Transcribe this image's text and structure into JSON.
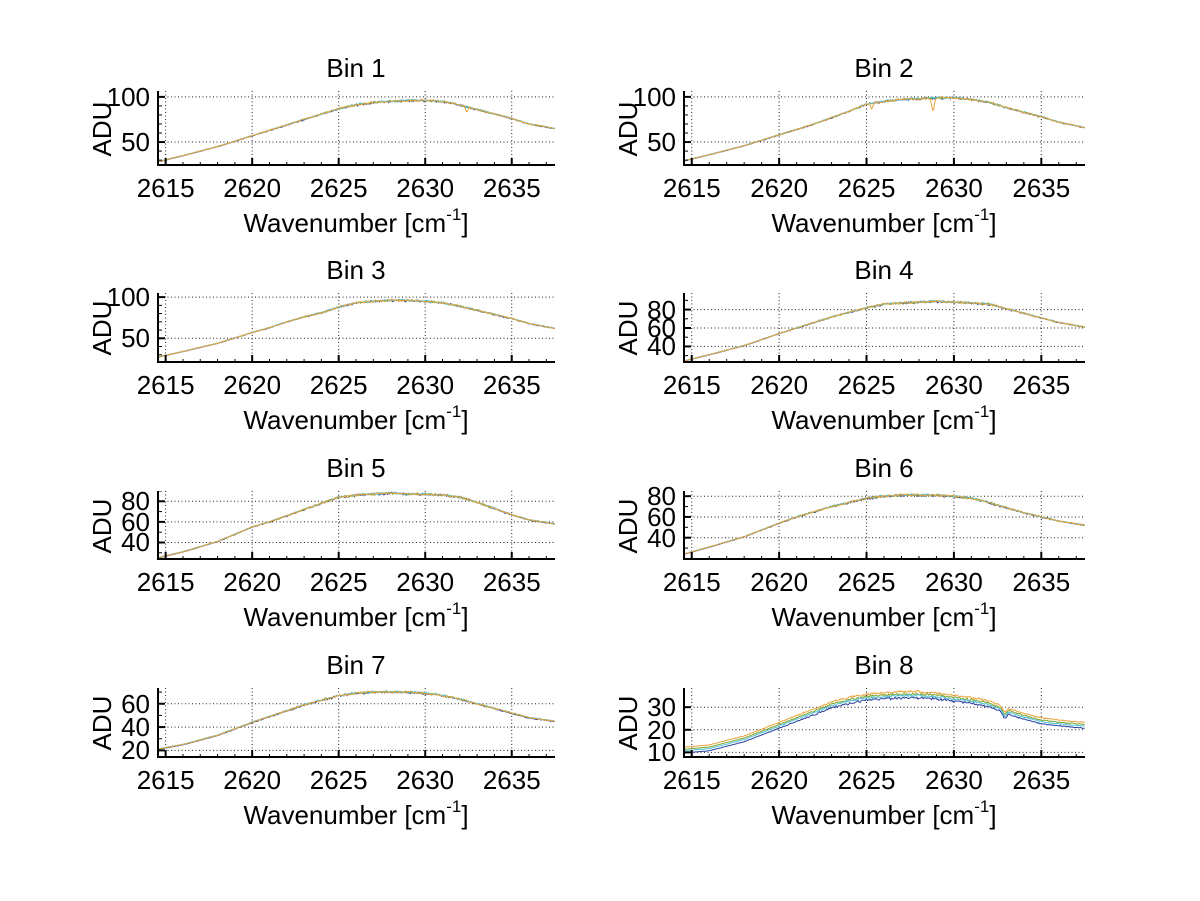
{
  "figure": {
    "background": "#ffffff",
    "text_color": "#000000",
    "grid_style": "dotted",
    "axis_color": "#000000",
    "ylabel": "ADU",
    "xlabel_pre": "Wavenumber [cm",
    "xlabel_sup": "-1",
    "xlabel_post": "]",
    "xlim": [
      2614.5,
      2637.5
    ],
    "xticks": [
      2615,
      2620,
      2625,
      2630,
      2635
    ],
    "series": [
      {
        "name": "blue",
        "color": "#2b3f9f"
      },
      {
        "name": "green",
        "color": "#7ea42e"
      },
      {
        "name": "cyan",
        "color": "#4fc4da"
      },
      {
        "name": "orange",
        "color": "#e9a33c"
      }
    ]
  },
  "chart_data": [
    {
      "type": "line",
      "title": "Bin 1",
      "ylabel": "ADU",
      "xlabel": "Wavenumber [cm^-1]",
      "xlim": [
        2614.5,
        2637.5
      ],
      "ylim": [
        23.5,
        106.5
      ],
      "yticks": [
        50,
        100
      ],
      "x": [
        2614.5,
        2616,
        2618,
        2620,
        2621,
        2622,
        2623,
        2624,
        2625,
        2626,
        2627,
        2628,
        2629,
        2630,
        2631,
        2632,
        2633,
        2634,
        2635,
        2636,
        2637.5
      ],
      "y": [
        28,
        35,
        45,
        57,
        63,
        69,
        75,
        81,
        87,
        91,
        94,
        95,
        96,
        96,
        95,
        91,
        86,
        81,
        76,
        70,
        65
      ],
      "noise": 1.5,
      "series_offsets": {
        "blue": -0.25,
        "green": 0.05,
        "cyan": 0.2,
        "orange": 0
      },
      "spikes": [
        {
          "x": 2632.4,
          "dy": -6,
          "w": 0.08,
          "series": "orange"
        }
      ]
    },
    {
      "type": "line",
      "title": "Bin 2",
      "ylabel": "ADU",
      "xlabel": "Wavenumber [cm^-1]",
      "xlim": [
        2614.5,
        2637.5
      ],
      "ylim": [
        23.5,
        106.5
      ],
      "yticks": [
        50,
        100
      ],
      "x": [
        2614.5,
        2616,
        2618,
        2620,
        2621,
        2622,
        2623,
        2624,
        2625,
        2626,
        2627,
        2628,
        2629,
        2630,
        2631,
        2632,
        2633,
        2634,
        2635,
        2636,
        2637.5
      ],
      "y": [
        29,
        36,
        46,
        58,
        64,
        70,
        77,
        84,
        92,
        95,
        97,
        98,
        99,
        99,
        97,
        94,
        88,
        83,
        78,
        72,
        66
      ],
      "noise": 1.5,
      "series_offsets": {
        "blue": -0.25,
        "green": 0.05,
        "cyan": 0.2,
        "orange": 0
      },
      "spikes": [
        {
          "x": 2628.8,
          "dy": -15,
          "w": 0.1,
          "series": "orange"
        },
        {
          "x": 2625.3,
          "dy": -6,
          "w": 0.08,
          "series": "orange"
        }
      ]
    },
    {
      "type": "line",
      "title": "Bin 3",
      "ylabel": "ADU",
      "xlabel": "Wavenumber [cm^-1]",
      "xlim": [
        2614.5,
        2637.5
      ],
      "ylim": [
        20,
        105
      ],
      "yticks": [
        50,
        100
      ],
      "x": [
        2614.5,
        2616,
        2618,
        2620,
        2621,
        2622,
        2623,
        2624,
        2625,
        2626,
        2627,
        2628,
        2629,
        2630,
        2631,
        2632,
        2633,
        2634,
        2635,
        2636,
        2637.5
      ],
      "y": [
        27,
        34,
        44,
        57,
        63,
        70,
        76,
        81,
        88,
        93,
        95,
        96,
        96,
        95,
        93,
        89,
        84,
        79,
        74,
        68,
        62
      ],
      "noise": 1.5,
      "series_offsets": {
        "blue": -0.25,
        "green": 0.05,
        "cyan": 0.2,
        "orange": 0
      },
      "spikes": []
    },
    {
      "type": "line",
      "title": "Bin 4",
      "ylabel": "ADU",
      "xlabel": "Wavenumber [cm^-1]",
      "xlim": [
        2614.5,
        2637.5
      ],
      "ylim": [
        22,
        98
      ],
      "yticks": [
        40,
        60,
        80
      ],
      "x": [
        2614.5,
        2616,
        2618,
        2620,
        2621,
        2622,
        2623,
        2624,
        2625,
        2626,
        2627,
        2628,
        2629,
        2630,
        2631,
        2632,
        2633,
        2634,
        2635,
        2636,
        2637.5
      ],
      "y": [
        24,
        31,
        41,
        54,
        60,
        66,
        72,
        77,
        82,
        86,
        87,
        88,
        89,
        88,
        87,
        86,
        81,
        76,
        71,
        66,
        61
      ],
      "noise": 1.4,
      "series_offsets": {
        "blue": -0.25,
        "green": 0.05,
        "cyan": 0.2,
        "orange": 0
      },
      "spikes": []
    },
    {
      "type": "line",
      "title": "Bin 5",
      "ylabel": "ADU",
      "xlabel": "Wavenumber [cm^-1]",
      "xlim": [
        2614.5,
        2637.5
      ],
      "ylim": [
        23,
        90
      ],
      "yticks": [
        40,
        60,
        80
      ],
      "x": [
        2614.5,
        2616,
        2618,
        2620,
        2621,
        2622,
        2623,
        2624,
        2625,
        2626,
        2627,
        2628,
        2629,
        2630,
        2631,
        2632,
        2633,
        2634,
        2635,
        2636,
        2637.5
      ],
      "y": [
        25,
        31,
        41,
        55,
        60,
        66,
        72,
        78,
        84,
        86,
        87,
        88,
        87,
        87,
        86,
        84,
        79,
        73,
        67,
        62,
        58
      ],
      "noise": 1.4,
      "series_offsets": {
        "blue": -0.25,
        "green": 0.05,
        "cyan": 0.2,
        "orange": 0
      },
      "spikes": []
    },
    {
      "type": "line",
      "title": "Bin 6",
      "ylabel": "ADU",
      "xlabel": "Wavenumber [cm^-1]",
      "xlim": [
        2614.5,
        2637.5
      ],
      "ylim": [
        18.5,
        85
      ],
      "yticks": [
        40,
        60,
        80
      ],
      "x": [
        2614.5,
        2616,
        2618,
        2620,
        2621,
        2622,
        2623,
        2624,
        2625,
        2626,
        2627,
        2628,
        2629,
        2630,
        2631,
        2632,
        2633,
        2634,
        2635,
        2636,
        2637.5
      ],
      "y": [
        24,
        31,
        41,
        54,
        60,
        65,
        70,
        74,
        78,
        80,
        81,
        81,
        81,
        80,
        78,
        74,
        69,
        64,
        60,
        56,
        52
      ],
      "noise": 1.4,
      "series_offsets": {
        "blue": -0.25,
        "green": 0.05,
        "cyan": 0.2,
        "orange": 0
      },
      "spikes": []
    },
    {
      "type": "line",
      "title": "Bin 7",
      "ylabel": "ADU",
      "xlabel": "Wavenumber [cm^-1]",
      "xlim": [
        2614.5,
        2637.5
      ],
      "ylim": [
        13.5,
        73.5
      ],
      "yticks": [
        20,
        40,
        60
      ],
      "x": [
        2614.5,
        2616,
        2618,
        2620,
        2621,
        2622,
        2623,
        2624,
        2625,
        2626,
        2627,
        2628,
        2629,
        2630,
        2631,
        2632,
        2633,
        2634,
        2635,
        2636,
        2637.5
      ],
      "y": [
        21,
        25,
        33,
        44,
        49,
        54,
        59,
        63,
        67,
        69,
        70,
        70,
        70,
        69,
        67,
        64,
        60,
        56,
        52,
        48,
        45
      ],
      "noise": 1.1,
      "series_offsets": {
        "blue": -0.3,
        "green": 0.1,
        "cyan": 0.25,
        "orange": 0
      },
      "spikes": []
    },
    {
      "type": "line",
      "title": "Bin 8",
      "ylabel": "ADU",
      "xlabel": "Wavenumber [cm^-1]",
      "xlim": [
        2614.5,
        2637.5
      ],
      "ylim": [
        7.5,
        38.5
      ],
      "yticks": [
        10,
        20,
        30
      ],
      "x": [
        2614.5,
        2616,
        2618,
        2620,
        2621,
        2622,
        2623,
        2624,
        2625,
        2626,
        2627,
        2628,
        2629,
        2630,
        2631,
        2632,
        2633,
        2634,
        2635,
        2636,
        2637.5
      ],
      "y": [
        11,
        12,
        16,
        22,
        25,
        28,
        31,
        33,
        34.5,
        35,
        35.5,
        35.5,
        35,
        34,
        33,
        31.5,
        28.5,
        26,
        24,
        23,
        22
      ],
      "noise": 0.7,
      "series_offsets": {
        "blue": -1.3,
        "green": 0.35,
        "cyan": -0.35,
        "orange": 1.3
      },
      "spikes": [
        {
          "x": 2632.9,
          "dy": -2.2,
          "w": 0.15,
          "series": "all"
        }
      ]
    }
  ]
}
